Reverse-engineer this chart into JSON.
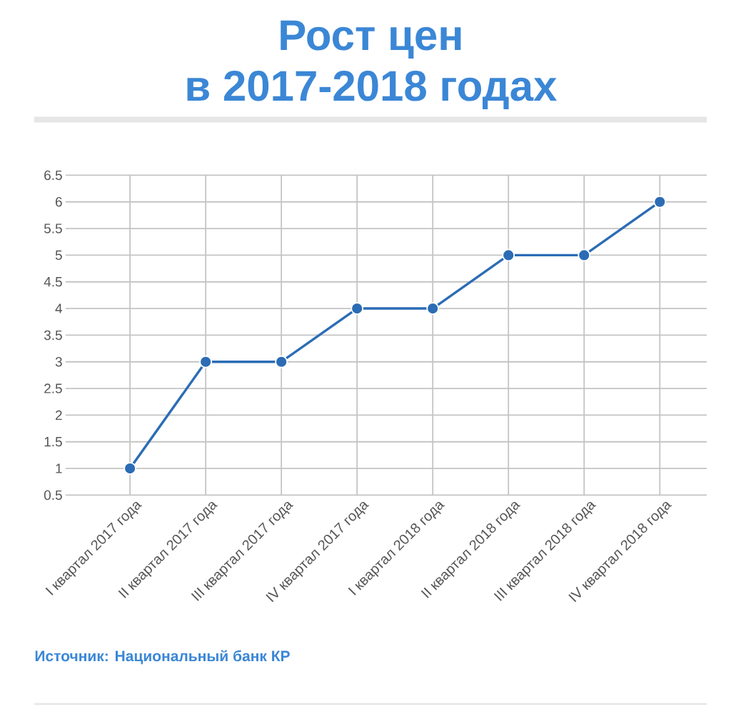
{
  "chart_data": {
    "type": "line",
    "title": "Рост цен в 2017-2018 годах",
    "categories": [
      "I квартал 2017 года",
      "II квартал 2017 года",
      "III квартал 2017 года",
      "IV квартал 2017 года",
      "I квартал 2018 года",
      "II квартал 2018 года",
      "III квартал 2018 года",
      "IV квартал 2018 года"
    ],
    "series": [
      {
        "color": "#2b6cb5",
        "values": [
          1,
          3,
          3,
          4,
          4,
          5,
          5,
          6
        ]
      }
    ],
    "ylim": [
      0.5,
      6.5
    ],
    "yticks": [
      0.5,
      1,
      1.5,
      2,
      2.5,
      3,
      3.5,
      4,
      4.5,
      5,
      5.5,
      6,
      6.5
    ],
    "grid": true,
    "marker": "circle",
    "line_style": "solid",
    "annotations": [
      "Источник: Национальный банк КР"
    ]
  }
}
